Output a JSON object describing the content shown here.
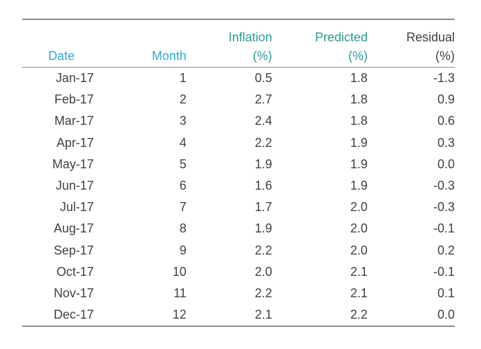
{
  "chart_data": {
    "type": "table",
    "columns": [
      {
        "line1": "",
        "line2": "Date"
      },
      {
        "line1": "",
        "line2": "Month"
      },
      {
        "line1": "Inflation",
        "line2": "(%)"
      },
      {
        "line1": "Predicted",
        "line2": "(%)"
      },
      {
        "line1": "Residual",
        "line2": "(%)"
      }
    ],
    "rows": [
      [
        "Jan-17",
        "1",
        "0.5",
        "1.8",
        "-1.3"
      ],
      [
        "Feb-17",
        "2",
        "2.7",
        "1.8",
        "0.9"
      ],
      [
        "Mar-17",
        "3",
        "2.4",
        "1.8",
        "0.6"
      ],
      [
        "Apr-17",
        "4",
        "2.2",
        "1.9",
        "0.3"
      ],
      [
        "May-17",
        "5",
        "1.9",
        "1.9",
        "0.0"
      ],
      [
        "Jun-17",
        "6",
        "1.6",
        "1.9",
        "-0.3"
      ],
      [
        "Jul-17",
        "7",
        "1.7",
        "2.0",
        "-0.3"
      ],
      [
        "Aug-17",
        "8",
        "1.9",
        "2.0",
        "-0.1"
      ],
      [
        "Sep-17",
        "9",
        "2.2",
        "2.0",
        "0.2"
      ],
      [
        "Oct-17",
        "10",
        "2.0",
        "2.1",
        "-0.1"
      ],
      [
        "Nov-17",
        "11",
        "2.2",
        "2.1",
        "0.1"
      ],
      [
        "Dec-17",
        "12",
        "2.1",
        "2.2",
        "0.0"
      ]
    ],
    "colors": {
      "date_header": "#2fa9d3",
      "month_header": "#2fa9d3",
      "inflation_header": "#2a9d8f",
      "predicted_header": "#2a9d8f",
      "residual_header": "#404040",
      "body_text": "#404040",
      "rules": "#8c8c8c"
    }
  }
}
